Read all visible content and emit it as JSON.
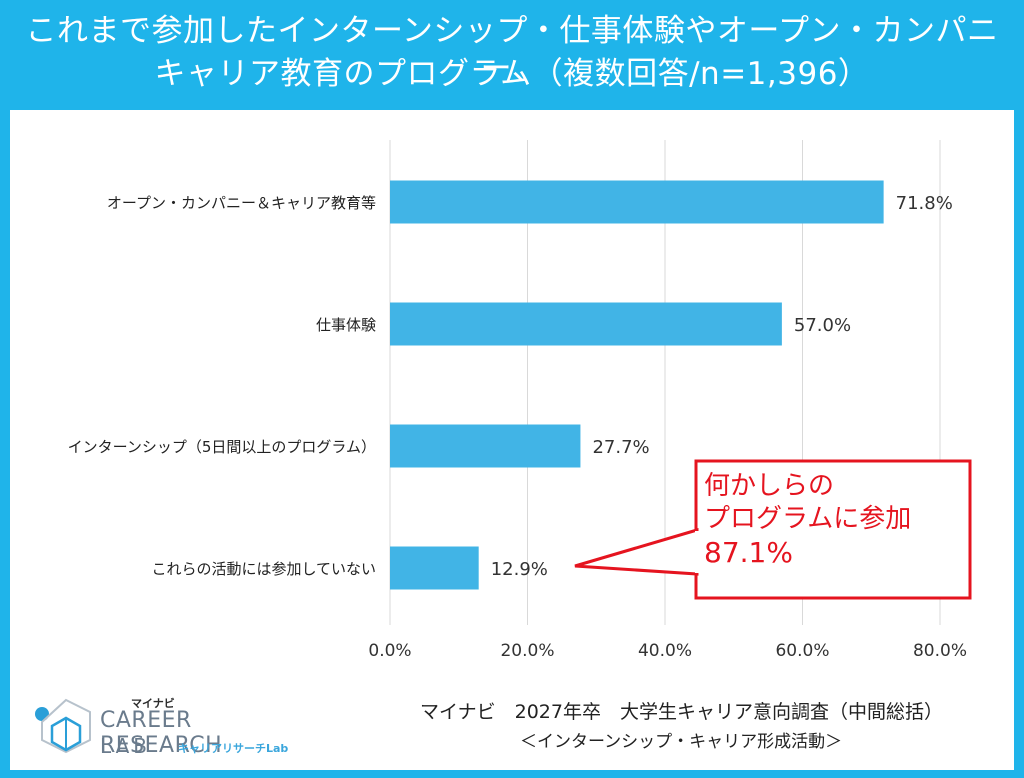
{
  "header": {
    "line1": "これまで参加したインターンシップ・仕事体験やオープン・カンパニー、",
    "line2": "キャリア教育のプログラム（複数回答/n=1,396）"
  },
  "colors": {
    "frame": "#1fb4ea",
    "bar": "#41b4e6",
    "grid": "#d9d9d9",
    "callout": "#e5141f"
  },
  "chart_data": {
    "type": "bar",
    "orientation": "horizontal",
    "categories": [
      "オープン・カンパニー＆キャリア教育等",
      "仕事体験",
      "インターンシップ（5日間以上のプログラム）",
      "これらの活動には参加していない"
    ],
    "values": [
      71.8,
      57.0,
      27.7,
      12.9
    ],
    "value_labels": [
      "71.8%",
      "57.0%",
      "27.7%",
      "12.9%"
    ],
    "xlim": [
      0,
      80
    ],
    "xticks": [
      0,
      20,
      40,
      60,
      80
    ],
    "xtick_labels": [
      "0.0%",
      "20.0%",
      "40.0%",
      "60.0%",
      "80.0%"
    ],
    "grid": true
  },
  "callout": {
    "line1": "何かしらの",
    "line2": "プログラムに参加",
    "line3": "87.1%"
  },
  "logo": {
    "brand": "マイナビ",
    "line1": "CAREER RESEARCH",
    "line2": "LAB",
    "sub": "キャリアリサーチLab"
  },
  "source": {
    "line1": "マイナビ　2027年卒　大学生キャリア意向調査（中間総括）",
    "line2": "＜インターンシップ・キャリア形成活動＞"
  }
}
